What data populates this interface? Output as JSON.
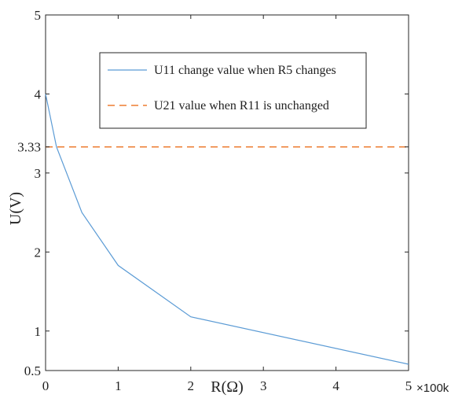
{
  "chart_data": {
    "type": "line",
    "title": "",
    "xlabel": "R(Ω)",
    "ylabel": "U(V)",
    "x_multiplier_label": "×100k",
    "xlim": [
      0,
      5
    ],
    "ylim": [
      0.5,
      5
    ],
    "x_ticks": [
      0,
      1,
      2,
      3,
      4,
      5
    ],
    "x_tick_labels": [
      "0",
      "1",
      "2",
      "3",
      "4",
      "5"
    ],
    "y_ticks": [
      0.5,
      1,
      2,
      3,
      3.33,
      4,
      5
    ],
    "y_tick_labels": [
      "0.5",
      "1",
      "2",
      "3",
      "3.33",
      "4",
      "5"
    ],
    "grid": false,
    "legend_position": "top-right",
    "series": [
      {
        "name": "U11 change value when R5 changes",
        "style": "solid",
        "color": "#5b9bd5",
        "x": [
          0,
          0.15,
          0.5,
          1,
          2,
          5
        ],
        "y": [
          4.0,
          3.33,
          2.5,
          1.83,
          1.18,
          0.58
        ]
      },
      {
        "name": "U21 value when R11 is unchanged",
        "style": "dashed",
        "color": "#ed7d31",
        "x": [
          0,
          5
        ],
        "y": [
          3.33,
          3.33
        ]
      }
    ]
  }
}
